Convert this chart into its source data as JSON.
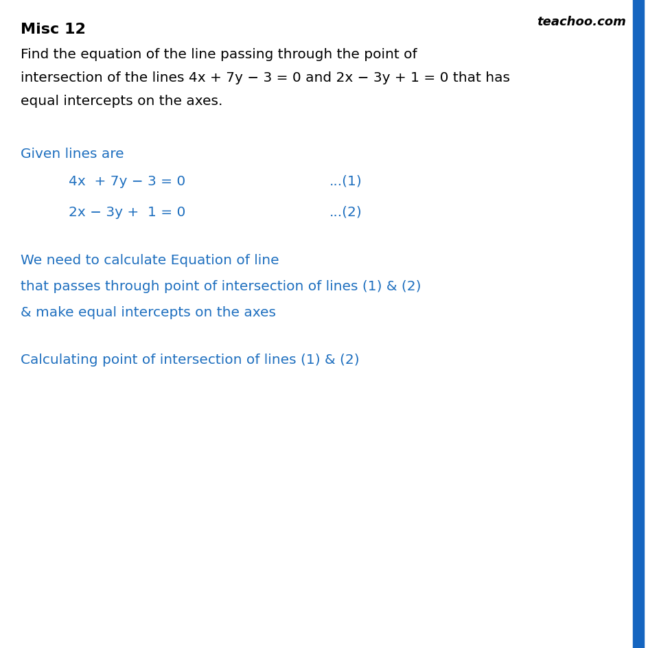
{
  "title": "Misc 12",
  "watermark": "teachoo.com",
  "background_color": "#ffffff",
  "blue_bar_color": "#1565C0",
  "title_color": "#000000",
  "body_color": "#000000",
  "blue_text_color": "#1E6FBF",
  "title_fontsize": 15,
  "body_fontsize": 14.5,
  "blue_fontsize": 14.5,
  "problem_lines": [
    "Find the equation of the line passing through the point of",
    "intersection of the lines 4x + 7y − 3 = 0 and 2x − 3y + 1 = 0 that has",
    "equal intercepts on the axes."
  ],
  "section1_label": "Given lines are",
  "eq1": "4x  + 7y − 3 = 0",
  "eq1_num": "...(1)",
  "eq2": "2x − 3y +  1 = 0",
  "eq2_num": "...(2)",
  "section2_lines": [
    "We need to calculate Equation of line",
    "that passes through point of intersection of lines (1) & (2)",
    "& make equal intercepts on the axes"
  ],
  "section3_lines": [
    "Calculating point of intersection of lines (1) & (2)"
  ]
}
